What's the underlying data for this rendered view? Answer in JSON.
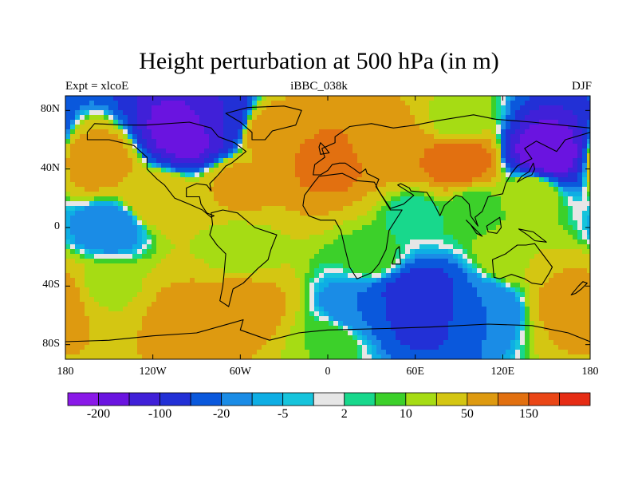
{
  "chart_data": {
    "type": "heatmap",
    "title": "Height perturbation at 500 hPa (in m)",
    "subtitle_left": "Expt = xlcoE",
    "subtitle_center": "iBBC_038k",
    "subtitle_right": "DJF",
    "x_ticks": [
      "180",
      "120W",
      "60W",
      "0",
      "60E",
      "120E",
      "180"
    ],
    "y_ticks": [
      "80N",
      "40N",
      "0",
      "40S",
      "80S"
    ],
    "xlim": [
      -180,
      180
    ],
    "ylim": [
      -90,
      90
    ],
    "colorbar": {
      "labels": [
        "-200",
        "-100",
        "-20",
        "-5",
        "2",
        "10",
        "50",
        "150"
      ],
      "colors": [
        "#8a19e8",
        "#6a14e0",
        "#4020d8",
        "#2230d6",
        "#0a58dc",
        "#1a8ce6",
        "#0eaee4",
        "#16c4dc",
        "#e6e6e6",
        "#18d88c",
        "#3cd02a",
        "#a6dc14",
        "#d4c612",
        "#de9a10",
        "#e27010",
        "#ea4616",
        "#e62c14"
      ]
    },
    "regions": [
      {
        "lon": -160,
        "lat": 45,
        "value": 80
      },
      {
        "lon": -115,
        "lat": 20,
        "value": 40
      },
      {
        "lon": -95,
        "lat": 65,
        "value": -200
      },
      {
        "lon": -75,
        "lat": 72,
        "value": -100
      },
      {
        "lon": -60,
        "lat": 30,
        "value": 60
      },
      {
        "lon": -40,
        "lat": 65,
        "value": 80
      },
      {
        "lon": 0,
        "lat": 45,
        "value": 120
      },
      {
        "lon": 40,
        "lat": 55,
        "value": 80
      },
      {
        "lon": 90,
        "lat": 45,
        "value": 150
      },
      {
        "lon": 90,
        "lat": 72,
        "value": 10
      },
      {
        "lon": 150,
        "lat": 50,
        "value": -200
      },
      {
        "lon": 140,
        "lat": 25,
        "value": 20
      },
      {
        "lon": -150,
        "lat": 0,
        "value": -20
      },
      {
        "lon": 60,
        "lat": 10,
        "value": 2
      },
      {
        "lon": 100,
        "lat": 15,
        "value": 5
      },
      {
        "lon": -60,
        "lat": -15,
        "value": 10
      },
      {
        "lon": 30,
        "lat": -20,
        "value": 8
      },
      {
        "lon": 130,
        "lat": -20,
        "value": 20
      },
      {
        "lon": -150,
        "lat": -40,
        "value": 15
      },
      {
        "lon": -100,
        "lat": -60,
        "value": 60
      },
      {
        "lon": -60,
        "lat": -55,
        "value": 80
      },
      {
        "lon": 20,
        "lat": -55,
        "value": -20
      },
      {
        "lon": 60,
        "lat": -50,
        "value": -100
      },
      {
        "lon": 110,
        "lat": -55,
        "value": -20
      },
      {
        "lon": 170,
        "lat": -50,
        "value": 80
      },
      {
        "lon": 0,
        "lat": -78,
        "value": 10
      }
    ]
  }
}
